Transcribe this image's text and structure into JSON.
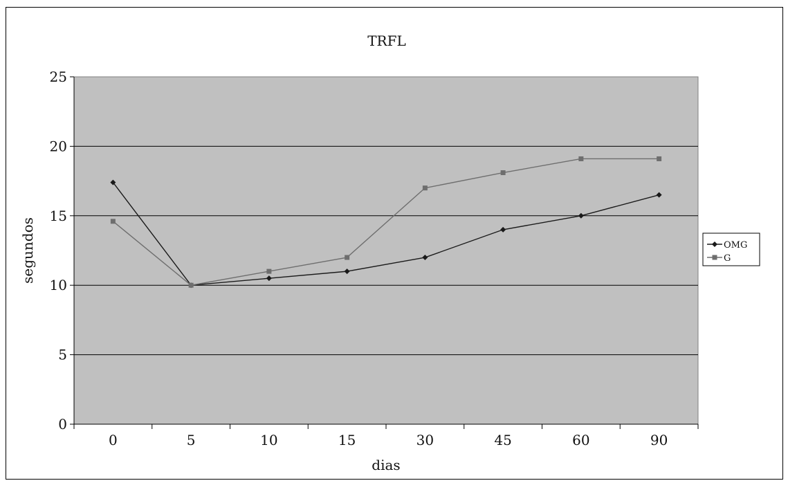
{
  "chart_data": {
    "type": "line",
    "title": "TRFL",
    "xlabel": "dias",
    "ylabel": "segundos",
    "categories": [
      "0",
      "5",
      "10",
      "15",
      "30",
      "45",
      "60",
      "90"
    ],
    "ylim": [
      0,
      25
    ],
    "yticks": [
      0,
      5,
      10,
      15,
      20,
      25
    ],
    "grid": true,
    "legend_position": "right",
    "colors": {
      "plot_background": "#c0c0c0",
      "gridline": "#000000",
      "OMG": "#1a1a1a",
      "G": "#6e6e6e"
    },
    "series": [
      {
        "name": "OMG",
        "marker": "diamond",
        "values": [
          17.4,
          10,
          10.5,
          11,
          12,
          14,
          15,
          16.5
        ]
      },
      {
        "name": "G",
        "marker": "square",
        "values": [
          14.6,
          10,
          11,
          12,
          17,
          18.1,
          19.1,
          19.1
        ]
      }
    ]
  }
}
